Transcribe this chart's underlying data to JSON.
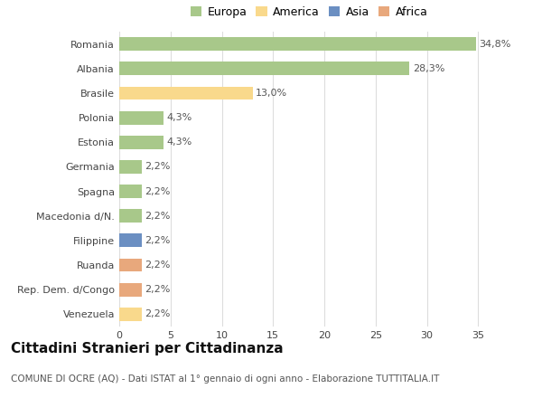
{
  "categories": [
    "Romania",
    "Albania",
    "Brasile",
    "Polonia",
    "Estonia",
    "Germania",
    "Spagna",
    "Macedonia d/N.",
    "Filippine",
    "Ruanda",
    "Rep. Dem. d/Congo",
    "Venezuela"
  ],
  "values": [
    34.8,
    28.3,
    13.0,
    4.3,
    4.3,
    2.2,
    2.2,
    2.2,
    2.2,
    2.2,
    2.2,
    2.2
  ],
  "labels": [
    "34,8%",
    "28,3%",
    "13,0%",
    "4,3%",
    "4,3%",
    "2,2%",
    "2,2%",
    "2,2%",
    "2,2%",
    "2,2%",
    "2,2%",
    "2,2%"
  ],
  "colors": [
    "#a8c88a",
    "#a8c88a",
    "#f9d98c",
    "#a8c88a",
    "#a8c88a",
    "#a8c88a",
    "#a8c88a",
    "#a8c88a",
    "#6b8fc2",
    "#e8a87c",
    "#e8a87c",
    "#f9d98c"
  ],
  "legend_labels": [
    "Europa",
    "America",
    "Asia",
    "Africa"
  ],
  "legend_colors": [
    "#a8c88a",
    "#f9d98c",
    "#6b8fc2",
    "#e8a87c"
  ],
  "title": "Cittadini Stranieri per Cittadinanza",
  "subtitle": "COMUNE DI OCRE (AQ) - Dati ISTAT al 1° gennaio di ogni anno - Elaborazione TUTTITALIA.IT",
  "xlim": [
    0,
    37
  ],
  "xticks": [
    0,
    5,
    10,
    15,
    20,
    25,
    30,
    35
  ],
  "background_color": "#ffffff",
  "grid_color": "#dddddd",
  "title_fontsize": 11,
  "subtitle_fontsize": 7.5,
  "tick_fontsize": 8,
  "label_fontsize": 8,
  "legend_fontsize": 9
}
